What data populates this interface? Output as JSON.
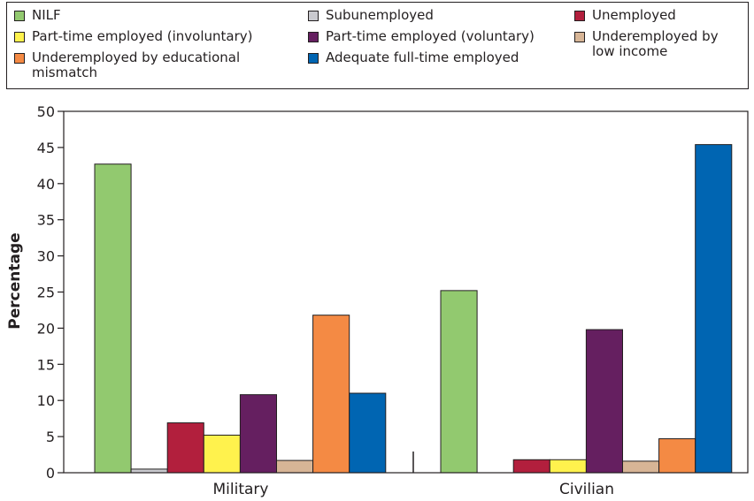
{
  "chart_data": {
    "type": "bar",
    "categories": [
      "Military",
      "Civilian"
    ],
    "series": [
      {
        "name": "NILF",
        "color": "#92c96f",
        "values": [
          42.7,
          25.2
        ]
      },
      {
        "name": "Subunemployed",
        "color": "#c9c9ce",
        "values": [
          0.5,
          0
        ]
      },
      {
        "name": "Unemployed",
        "color": "#b21f3d",
        "values": [
          6.9,
          1.8
        ]
      },
      {
        "name": "Part-time employed (involuntary)",
        "color": "#fff24d",
        "values": [
          5.2,
          1.8
        ]
      },
      {
        "name": "Part-time employed (voluntary)",
        "color": "#651f60",
        "values": [
          10.8,
          19.8
        ]
      },
      {
        "name": "Underemployed by low income",
        "color": "#d7b596",
        "values": [
          1.7,
          1.6
        ]
      },
      {
        "name": "Underemployed by educational mismatch",
        "color": "#f48a44",
        "values": [
          21.8,
          4.7
        ]
      },
      {
        "name": "Adequate full-time employed",
        "color": "#0065b2",
        "values": [
          11.0,
          45.4
        ]
      }
    ],
    "ylabel": "Percentage",
    "ylim": [
      0,
      50
    ],
    "yticks": [
      "0",
      "5",
      "10",
      "15",
      "20",
      "25",
      "30",
      "35",
      "40",
      "45",
      "50"
    ],
    "grid": false,
    "legend": "top"
  },
  "legend_labels": {
    "nilf": "NILF",
    "subunemployed": "Subunemployed",
    "unemployed": "Unemployed",
    "pt_invol": "Part-time employed (involuntary)",
    "pt_vol": "Part-time employed (voluntary)",
    "low_income": "Underemployed by low income",
    "edu_mismatch": "Underemployed by educational mismatch",
    "adequate": "Adequate full-time employed"
  }
}
